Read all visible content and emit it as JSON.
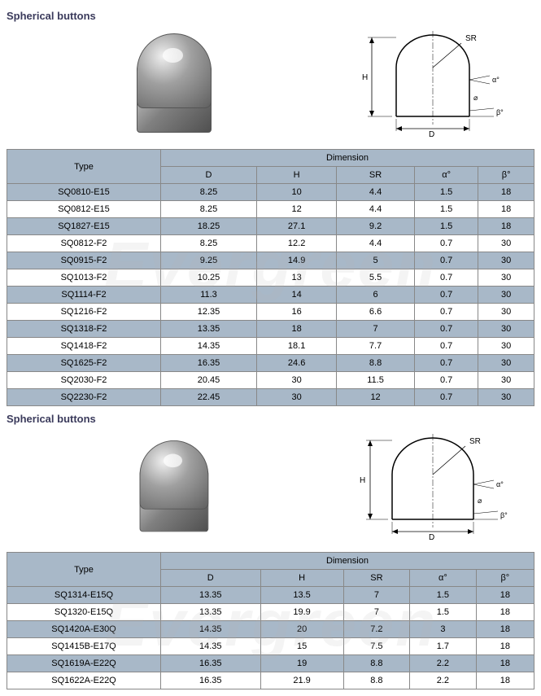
{
  "watermark": "Evergreen",
  "section1": {
    "title": "Spherical buttons",
    "diagram_labels": {
      "sr": "SR",
      "h": "H",
      "d": "D",
      "alpha": "α°",
      "beta": "β°"
    },
    "table": {
      "header_type": "Type",
      "header_dimension": "Dimension",
      "columns": [
        "D",
        "H",
        "SR",
        "α°",
        "β°"
      ],
      "rows": [
        {
          "type": "SQ0810-E15",
          "d": "8.25",
          "h": "10",
          "sr": "4.4",
          "a": "1.5",
          "b": "18"
        },
        {
          "type": "SQ0812-E15",
          "d": "8.25",
          "h": "12",
          "sr": "4.4",
          "a": "1.5",
          "b": "18"
        },
        {
          "type": "SQ1827-E15",
          "d": "18.25",
          "h": "27.1",
          "sr": "9.2",
          "a": "1.5",
          "b": "18"
        },
        {
          "type": "SQ0812-F2",
          "d": "8.25",
          "h": "12.2",
          "sr": "4.4",
          "a": "0.7",
          "b": "30"
        },
        {
          "type": "SQ0915-F2",
          "d": "9.25",
          "h": "14.9",
          "sr": "5",
          "a": "0.7",
          "b": "30"
        },
        {
          "type": "SQ1013-F2",
          "d": "10.25",
          "h": "13",
          "sr": "5.5",
          "a": "0.7",
          "b": "30"
        },
        {
          "type": "SQ1114-F2",
          "d": "11.3",
          "h": "14",
          "sr": "6",
          "a": "0.7",
          "b": "30"
        },
        {
          "type": "SQ1216-F2",
          "d": "12.35",
          "h": "16",
          "sr": "6.6",
          "a": "0.7",
          "b": "30"
        },
        {
          "type": "SQ1318-F2",
          "d": "13.35",
          "h": "18",
          "sr": "7",
          "a": "0.7",
          "b": "30"
        },
        {
          "type": "SQ1418-F2",
          "d": "14.35",
          "h": "18.1",
          "sr": "7.7",
          "a": "0.7",
          "b": "30"
        },
        {
          "type": "SQ1625-F2",
          "d": "16.35",
          "h": "24.6",
          "sr": "8.8",
          "a": "0.7",
          "b": "30"
        },
        {
          "type": "SQ2030-F2",
          "d": "20.45",
          "h": "30",
          "sr": "11.5",
          "a": "0.7",
          "b": "30"
        },
        {
          "type": "SQ2230-F2",
          "d": "22.45",
          "h": "30",
          "sr": "12",
          "a": "0.7",
          "b": "30"
        }
      ]
    }
  },
  "section2": {
    "title": "Spherical buttons",
    "diagram_labels": {
      "sr": "SR",
      "h": "H",
      "d": "D",
      "alpha": "α°",
      "beta": "β°"
    },
    "table": {
      "header_type": "Type",
      "header_dimension": "Dimension",
      "columns": [
        "D",
        "H",
        "SR",
        "α°",
        "β°"
      ],
      "rows": [
        {
          "type": "SQ1314-E15Q",
          "d": "13.35",
          "h": "13.5",
          "sr": "7",
          "a": "1.5",
          "b": "18"
        },
        {
          "type": "SQ1320-E15Q",
          "d": "13.35",
          "h": "19.9",
          "sr": "7",
          "a": "1.5",
          "b": "18"
        },
        {
          "type": "SQ1420A-E30Q",
          "d": "14.35",
          "h": "20",
          "sr": "7.2",
          "a": "3",
          "b": "18"
        },
        {
          "type": "SQ1415B-E17Q",
          "d": "14.35",
          "h": "15",
          "sr": "7.5",
          "a": "1.7",
          "b": "18"
        },
        {
          "type": "SQ1619A-E22Q",
          "d": "16.35",
          "h": "19",
          "sr": "8.8",
          "a": "2.2",
          "b": "18"
        },
        {
          "type": "SQ1622A-E22Q",
          "d": "16.35",
          "h": "21.9",
          "sr": "8.8",
          "a": "2.2",
          "b": "18"
        }
      ]
    }
  }
}
